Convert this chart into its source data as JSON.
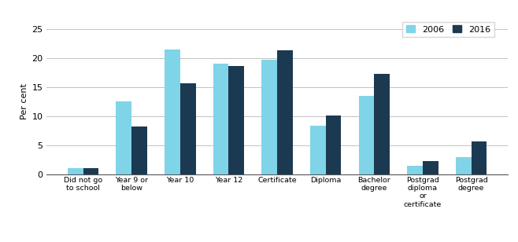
{
  "categories": [
    "Did not go\nto school",
    "Year 9 or\nbelow",
    "Year 10",
    "Year 12",
    "Certificate",
    "Diploma",
    "Bachelor\ndegree",
    "Postgrad\ndiploma\nor\ncertificate",
    "Postgrad\ndegree"
  ],
  "values_2006": [
    1.0,
    12.5,
    21.5,
    19.0,
    19.7,
    8.3,
    13.5,
    1.5,
    3.0
  ],
  "values_2016": [
    1.0,
    8.2,
    15.7,
    18.7,
    21.3,
    10.1,
    17.3,
    2.2,
    5.6
  ],
  "color_2006": "#7FD4E8",
  "color_2016": "#1B3A52",
  "legend_labels": [
    "2006",
    "2016"
  ],
  "ylabel": "Per cent",
  "ylim": [
    0,
    25
  ],
  "yticks": [
    0,
    5,
    10,
    15,
    20,
    25
  ],
  "bar_width": 0.32,
  "figsize": [
    6.58,
    3.08
  ],
  "dpi": 100
}
